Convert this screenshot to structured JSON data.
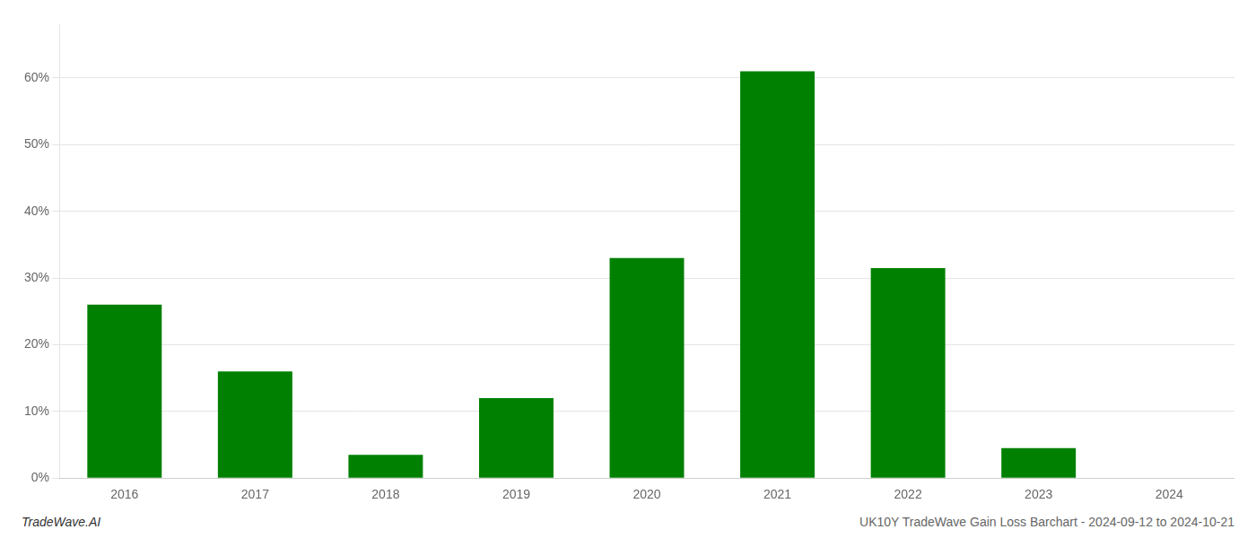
{
  "chart_data": {
    "type": "bar",
    "categories": [
      "2016",
      "2017",
      "2018",
      "2019",
      "2020",
      "2021",
      "2022",
      "2023",
      "2024"
    ],
    "values": [
      0.26,
      0.16,
      0.035,
      0.12,
      0.33,
      0.61,
      0.315,
      0.045,
      0.0
    ],
    "color": "#008000",
    "ylim": [
      0,
      0.68
    ],
    "yticks": [
      {
        "value": 0.0,
        "label": "0%"
      },
      {
        "value": 0.1,
        "label": "10%"
      },
      {
        "value": 0.2,
        "label": "20%"
      },
      {
        "value": 0.3,
        "label": "30%"
      },
      {
        "value": 0.4,
        "label": "40%"
      },
      {
        "value": 0.5,
        "label": "50%"
      },
      {
        "value": 0.6,
        "label": "60%"
      }
    ],
    "grid": true,
    "annotations": [
      "TradeWave.AI",
      "UK10Y TradeWave Gain Loss Barchart - 2024-09-12 to 2024-10-21"
    ]
  }
}
